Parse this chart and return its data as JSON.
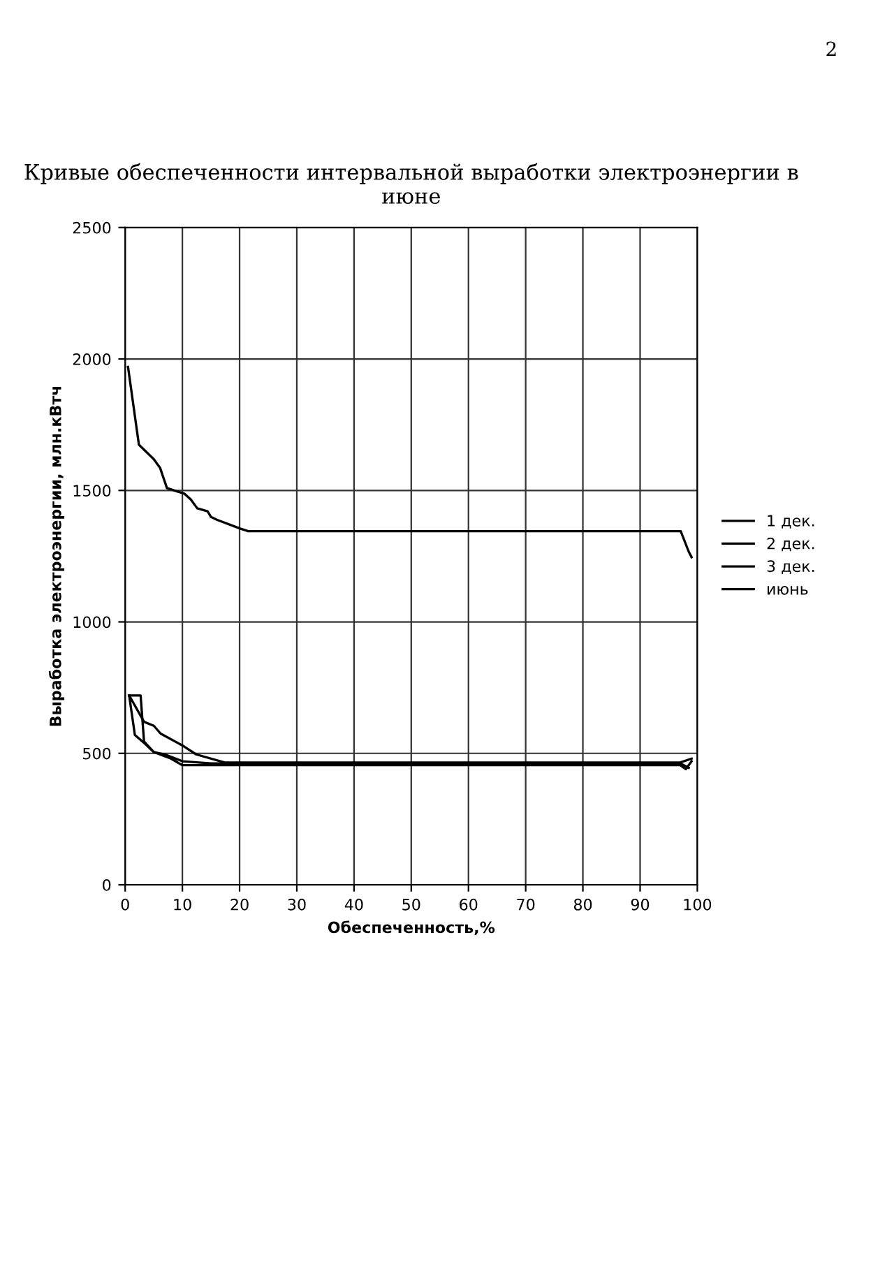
{
  "chart_data": {
    "type": "line",
    "title": "Кривые обеспеченности интервальной выработки электроэнергии в июне",
    "xlabel": "Обеспеченность,%",
    "ylabel": "Выработка электроэнергии, млн.кВтч",
    "annotations": [
      "2"
    ],
    "xlim": [
      0,
      100
    ],
    "xticks": [
      0,
      10,
      20,
      30,
      40,
      50,
      60,
      70,
      80,
      90,
      100
    ],
    "ylim": [
      0,
      2500
    ],
    "yticks": [
      0,
      500,
      1000,
      1500,
      2000,
      2500
    ],
    "grid": true,
    "legend": "right",
    "line_style": "solid",
    "marker": "none",
    "series": [
      {
        "name": "1 дек.",
        "color": "#000000",
        "x": [
          0.7,
          2.7,
          3.3,
          5,
          8,
          10,
          18,
          97,
          98,
          99
        ],
        "values": [
          720,
          720,
          545,
          505,
          480,
          455,
          455,
          455,
          440,
          470
        ]
      },
      {
        "name": "2 дек.",
        "color": "#000000",
        "x": [
          0.7,
          1.7,
          3.3,
          5,
          7,
          10,
          15,
          97,
          98.5
        ],
        "values": [
          720,
          570,
          540,
          505,
          495,
          470,
          462,
          462,
          445
        ]
      },
      {
        "name": "3 дек.",
        "color": "#000000",
        "x": [
          0.7,
          3.3,
          5,
          6.2,
          10,
          12.4,
          17.4,
          97,
          99
        ],
        "values": [
          720,
          620,
          605,
          575,
          530,
          496,
          465,
          465,
          480
        ]
      },
      {
        "name": "июнь",
        "color": "#000000",
        "x": [
          0.5,
          2.4,
          5,
          6.1,
          7.3,
          10.4,
          11.5,
          12.6,
          14.4,
          15,
          16.1,
          20.1,
          21.5,
          97.1,
          98.5,
          99
        ],
        "values": [
          1970,
          1674,
          1619,
          1586,
          1509,
          1487,
          1465,
          1432,
          1421,
          1399,
          1388,
          1355,
          1345,
          1345,
          1267,
          1246
        ]
      }
    ]
  }
}
